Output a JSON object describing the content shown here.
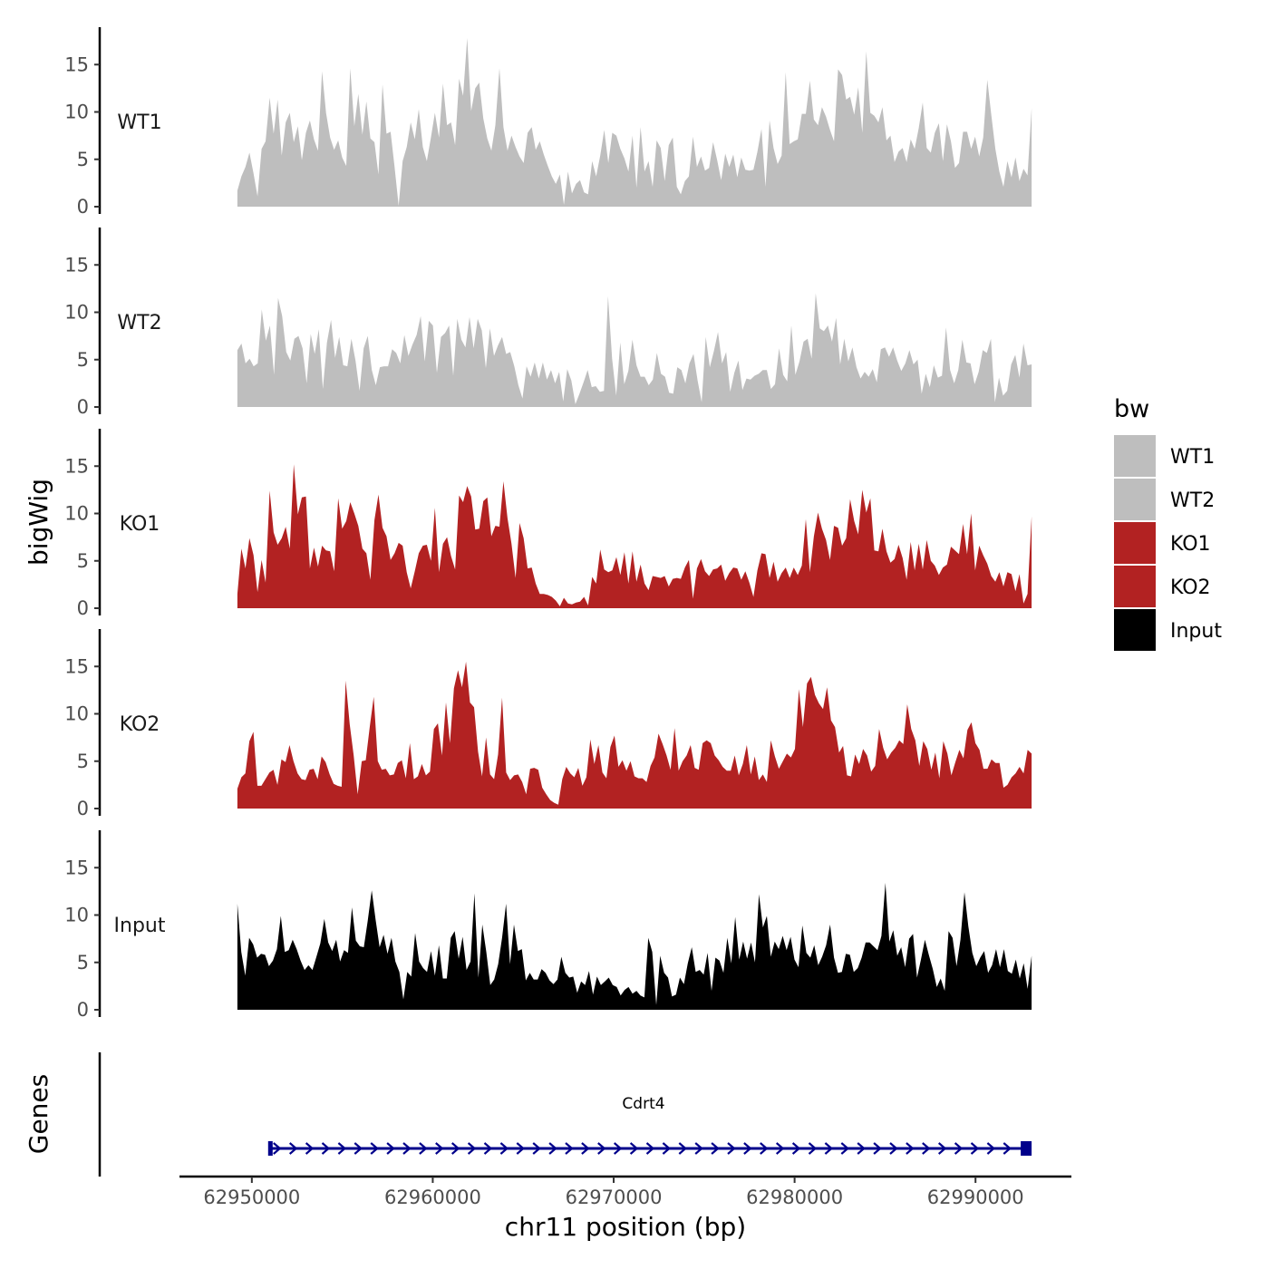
{
  "chart_data": {
    "type": "area",
    "subtype": "genome-browser-tracks",
    "title": "",
    "ylabel": "bigWig",
    "xlabel": "chr11 position (bp)",
    "x_range": [
      62949200,
      62993100
    ],
    "xlim": [
      62946000,
      62995300
    ],
    "ylim": [
      0,
      19
    ],
    "y_ticks": [
      "0",
      "5",
      "10",
      "15"
    ],
    "x_ticks": [
      {
        "value": 62950000,
        "label": "62950000"
      },
      {
        "value": 62960000,
        "label": "62960000"
      },
      {
        "value": 62970000,
        "label": "62970000"
      },
      {
        "value": 62980000,
        "label": "62980000"
      },
      {
        "value": 62990000,
        "label": "62990000"
      }
    ],
    "legend": {
      "title": "bw",
      "position": "right",
      "items": [
        {
          "label": "WT1",
          "color": "#bebebe"
        },
        {
          "label": "WT2",
          "color": "#bebebe"
        },
        {
          "label": "KO1",
          "color": "#b22222"
        },
        {
          "label": "KO2",
          "color": "#b22222"
        },
        {
          "label": "Input",
          "color": "#000000"
        }
      ]
    },
    "series": [
      {
        "name": "WT1",
        "color": "#bebebe",
        "values": [
          1.7,
          3.2,
          4.2,
          5.7,
          3.5,
          1.1,
          6.1,
          6.9,
          11.5,
          7.7,
          11.3,
          5.4,
          8.9,
          9.9,
          6.8,
          8.5,
          4.9,
          7.8,
          9.1,
          7.1,
          5.9,
          14.3,
          9.9,
          7.3,
          6.0,
          7.0,
          5.2,
          4.3,
          14.6,
          8.5,
          11.9,
          7.6,
          11.1,
          7.2,
          6.8,
          3.4,
          12.9,
          7.7,
          7.9,
          4.2,
          0.1,
          4.8,
          6.3,
          8.9,
          7.1,
          10.3,
          6.3,
          4.8,
          7.3,
          9.9,
          7.3,
          13.0,
          8.6,
          8.9,
          6.5,
          13.5,
          11.7,
          17.8,
          10.1,
          12.5,
          13.1,
          9.3,
          7.2,
          5.9,
          8.6,
          14.6,
          8.4,
          5.9,
          7.5,
          6.3,
          5.3,
          4.6,
          7.8,
          8.4,
          6.0,
          6.9,
          5.5,
          4.3,
          3.2,
          2.4,
          3.4,
          0.2,
          3.7,
          1.4,
          2.4,
          2.8,
          1.5,
          1.3,
          4.8,
          3.2,
          5.4,
          8.1,
          4.6,
          7.8,
          7.5,
          6.1,
          5.1,
          3.7,
          7.5,
          2.0,
          8.4,
          3.7,
          4.8,
          2.1,
          7.0,
          6.2,
          2.7,
          6.5,
          7.3,
          2.1,
          1.3,
          2.7,
          3.2,
          7.4,
          4.2,
          5.3,
          3.8,
          4.1,
          6.8,
          4.9,
          2.8,
          5.6,
          4.2,
          5.5,
          3.1,
          5.2,
          3.9,
          3.8,
          3.9,
          5.8,
          8.2,
          2.1,
          9.1,
          6.2,
          4.5,
          5.4,
          14.2,
          6.6,
          6.9,
          7.1,
          9.8,
          9.8,
          13.3,
          9.2,
          8.6,
          10.5,
          9.5,
          8.1,
          6.9,
          14.5,
          13.9,
          11.3,
          11.6,
          9.7,
          12.6,
          7.8,
          16.4,
          9.9,
          9.6,
          8.9,
          10.5,
          7.0,
          7.5,
          4.7,
          5.8,
          6.2,
          4.7,
          7.1,
          6.1,
          8.3,
          11.0,
          6.2,
          5.7,
          7.8,
          8.8,
          4.8,
          8.7,
          6.9,
          4.1,
          4.6,
          7.9,
          7.9,
          6.1,
          7.4,
          5.3,
          7.3,
          13.4,
          9.7,
          6.1,
          3.7,
          2.1,
          4.8,
          3.1,
          5.2,
          2.7,
          4.0,
          3.3,
          10.4
        ]
      },
      {
        "name": "WT2",
        "color": "#bebebe",
        "values": [
          6.0,
          6.7,
          4.6,
          5.1,
          4.3,
          4.6,
          10.3,
          7.0,
          8.6,
          3.4,
          11.5,
          9.6,
          5.8,
          4.9,
          7.2,
          7.5,
          6.2,
          2.5,
          7.7,
          5.6,
          8.2,
          1.9,
          6.8,
          9.2,
          5.2,
          7.4,
          4.4,
          4.3,
          7.2,
          4.9,
          1.7,
          6.2,
          7.5,
          3.9,
          2.3,
          4.2,
          4.3,
          4.3,
          6.1,
          5.7,
          4.6,
          7.6,
          5.4,
          6.6,
          7.6,
          9.6,
          4.8,
          9.1,
          8.6,
          3.6,
          7.4,
          7.8,
          8.6,
          3.3,
          9.3,
          7.1,
          6.3,
          9.5,
          6.2,
          9.3,
          8.1,
          4.1,
          8.3,
          5.4,
          6.5,
          7.4,
          5.6,
          5.8,
          4.3,
          2.3,
          0.9,
          4.3,
          3.2,
          4.7,
          3.0,
          4.7,
          2.9,
          3.9,
          2.5,
          3.7,
          0.6,
          4.0,
          2.8,
          0.3,
          1.4,
          2.6,
          3.9,
          2.1,
          2.2,
          1.6,
          1.7,
          11.7,
          5.1,
          1.2,
          6.8,
          2.4,
          3.8,
          7.1,
          4.4,
          3.2,
          3.2,
          2.3,
          2.9,
          5.7,
          3.5,
          3.2,
          1.5,
          1.4,
          4.2,
          3.9,
          2.5,
          4.6,
          5.6,
          2.8,
          0.5,
          7.4,
          4.2,
          5.9,
          7.9,
          4.6,
          5.8,
          1.6,
          3.6,
          4.9,
          1.8,
          3.0,
          2.9,
          3.3,
          3.5,
          3.9,
          3.9,
          1.9,
          2.4,
          6.2,
          3.4,
          2.7,
          8.6,
          3.4,
          4.8,
          6.9,
          7.2,
          5.1,
          12.0,
          8.3,
          8.0,
          8.6,
          6.9,
          9.4,
          4.5,
          7.2,
          4.8,
          6.3,
          4.2,
          3.0,
          3.7,
          3.2,
          4.0,
          2.6,
          6.1,
          6.3,
          5.3,
          6.3,
          4.9,
          3.8,
          4.6,
          6.0,
          4.5,
          5.0,
          1.4,
          3.5,
          2.1,
          4.4,
          3.1,
          3.3,
          8.4,
          3.9,
          2.5,
          3.9,
          7.1,
          4.7,
          4.6,
          2.4,
          3.7,
          6.0,
          5.7,
          7.2,
          0.5,
          3.1,
          1.2,
          1.7,
          4.5,
          5.5,
          3.1,
          6.7,
          4.4,
          4.5
        ]
      },
      {
        "name": "KO1",
        "color": "#b22222",
        "values": [
          1.5,
          6.3,
          4.2,
          7.4,
          5.6,
          1.7,
          5.1,
          2.7,
          12.4,
          8.0,
          6.7,
          7.4,
          8.6,
          6.3,
          15.2,
          9.9,
          11.7,
          11.8,
          4.2,
          6.4,
          4.4,
          6.6,
          6.1,
          6.0,
          3.9,
          11.6,
          8.4,
          9.2,
          11.2,
          10.0,
          8.7,
          6.3,
          5.8,
          3.0,
          9.3,
          12.0,
          8.5,
          7.6,
          5.1,
          5.8,
          6.9,
          6.6,
          3.8,
          2.1,
          3.9,
          5.8,
          6.6,
          6.7,
          5.0,
          10.6,
          3.8,
          6.8,
          7.5,
          5.5,
          4.1,
          11.9,
          11.2,
          12.9,
          11.8,
          8.3,
          8.4,
          11.3,
          11.7,
          7.6,
          8.7,
          8.6,
          13.4,
          9.5,
          6.8,
          3.2,
          9.0,
          7.4,
          4.2,
          4.3,
          2.6,
          1.5,
          1.5,
          1.4,
          1.2,
          0.8,
          0.2,
          1.1,
          0.5,
          0.4,
          0.6,
          0.7,
          1.2,
          0.3,
          3.3,
          2.6,
          6.2,
          4.1,
          3.8,
          4.0,
          5.4,
          3.5,
          5.9,
          2.6,
          6.0,
          2.8,
          4.6,
          2.6,
          1.9,
          3.4,
          3.3,
          3.2,
          3.4,
          2.3,
          3.1,
          3.2,
          3.1,
          4.3,
          5.1,
          1.0,
          4.2,
          5.2,
          3.9,
          3.4,
          4.1,
          4.2,
          4.6,
          2.9,
          3.7,
          4.3,
          4.2,
          3.0,
          3.9,
          2.7,
          1.2,
          4.0,
          5.8,
          5.7,
          3.2,
          4.9,
          2.8,
          3.7,
          4.3,
          3.2,
          4.3,
          3.5,
          4.5,
          9.4,
          3.8,
          7.6,
          10.1,
          8.4,
          7.2,
          5.1,
          8.7,
          8.5,
          6.6,
          7.4,
          11.5,
          9.2,
          7.8,
          12.5,
          10.1,
          11.6,
          6.1,
          6.0,
          8.4,
          6.0,
          4.8,
          5.2,
          6.7,
          5.3,
          3.0,
          7.0,
          4.0,
          6.8,
          4.1,
          7.2,
          5.0,
          4.5,
          3.5,
          4.3,
          4.6,
          6.5,
          6.1,
          5.7,
          8.9,
          5.7,
          10.0,
          4.0,
          6.6,
          5.6,
          4.7,
          3.4,
          2.8,
          3.8,
          2.3,
          3.8,
          3.6,
          1.8,
          3.6,
          0.5,
          1.5,
          9.7
        ]
      },
      {
        "name": "KO2",
        "color": "#b22222",
        "values": [
          2.1,
          3.3,
          3.7,
          7.1,
          8.1,
          2.4,
          2.4,
          3.1,
          3.8,
          4.1,
          2.5,
          5.2,
          4.9,
          6.7,
          5.0,
          3.7,
          3.1,
          3.0,
          4.1,
          4.2,
          3.1,
          5.5,
          4.9,
          3.6,
          2.6,
          2.4,
          2.3,
          13.5,
          8.9,
          5.6,
          1.5,
          5.0,
          5.1,
          8.6,
          11.8,
          5.0,
          4.1,
          4.2,
          3.5,
          3.6,
          4.8,
          5.1,
          3.2,
          6.9,
          3.1,
          3.4,
          4.7,
          3.5,
          3.9,
          8.4,
          9.0,
          5.6,
          11.2,
          6.9,
          12.7,
          14.6,
          12.8,
          15.5,
          11.2,
          10.7,
          6.0,
          3.4,
          7.5,
          3.6,
          3.1,
          5.7,
          11.7,
          3.8,
          3.0,
          3.5,
          3.6,
          2.8,
          1.5,
          4.2,
          4.3,
          4.1,
          2.2,
          1.5,
          0.9,
          0.6,
          0.4,
          3.1,
          4.4,
          3.7,
          3.3,
          4.3,
          2.4,
          3.3,
          7.3,
          4.7,
          6.7,
          3.8,
          3.2,
          6.5,
          7.7,
          4.4,
          5.1,
          4.0,
          5.0,
          3.4,
          3.2,
          3.2,
          2.8,
          4.5,
          5.4,
          7.9,
          6.8,
          5.6,
          4.1,
          8.5,
          4.0,
          5.0,
          5.6,
          6.7,
          4.3,
          4.1,
          6.9,
          7.2,
          6.9,
          5.6,
          5.1,
          4.4,
          4.0,
          4.0,
          5.6,
          3.5,
          4.7,
          6.7,
          3.6,
          5.5,
          3.0,
          3.6,
          2.8,
          7.2,
          5.5,
          4.2,
          5.0,
          5.8,
          5.4,
          6.3,
          12.6,
          8.6,
          13.2,
          13.9,
          12.0,
          11.1,
          10.5,
          12.8,
          9.3,
          8.6,
          5.9,
          6.6,
          3.5,
          3.4,
          5.7,
          4.7,
          6.3,
          5.6,
          3.9,
          4.5,
          8.4,
          6.4,
          5.2,
          5.9,
          6.4,
          7.2,
          6.8,
          11.0,
          8.4,
          7.2,
          4.5,
          7.1,
          6.3,
          4.1,
          5.9,
          3.2,
          7.1,
          5.8,
          3.5,
          4.9,
          6.2,
          5.3,
          8.3,
          9.1,
          6.9,
          6.2,
          4.2,
          4.2,
          5.2,
          4.8,
          4.8,
          2.2,
          2.5,
          3.3,
          3.7,
          4.4,
          3.7,
          6.2,
          5.8
        ]
      },
      {
        "name": "Input",
        "color": "#000000",
        "values": [
          11.2,
          6.1,
          3.6,
          7.6,
          6.9,
          5.5,
          5.9,
          5.8,
          4.6,
          5.2,
          6.4,
          9.9,
          6.1,
          6.3,
          7.4,
          6.4,
          5.2,
          4.2,
          4.7,
          4.2,
          5.6,
          7.0,
          9.6,
          7.1,
          6.2,
          7.4,
          5.1,
          6.3,
          6.0,
          10.8,
          7.3,
          6.7,
          6.6,
          9.4,
          12.6,
          9.5,
          6.6,
          7.9,
          5.9,
          7.6,
          5.1,
          4.0,
          1.1,
          4.0,
          3.5,
          8.1,
          5.1,
          4.4,
          4.0,
          6.2,
          3.6,
          6.8,
          3.3,
          3.3,
          7.6,
          8.3,
          5.4,
          7.7,
          4.2,
          5.1,
          12.3,
          3.4,
          9.0,
          6.1,
          2.6,
          3.2,
          4.8,
          7.6,
          11.2,
          4.8,
          9.0,
          6.2,
          6.4,
          3.1,
          3.9,
          3.2,
          3.2,
          4.3,
          3.9,
          3.1,
          2.7,
          3.2,
          5.6,
          3.9,
          3.4,
          3.5,
          1.8,
          3.0,
          2.6,
          4.1,
          1.6,
          3.5,
          2.6,
          3.0,
          3.4,
          2.6,
          2.4,
          1.5,
          2.1,
          2.4,
          1.7,
          2.0,
          1.5,
          1.3,
          7.6,
          6.1,
          0.5,
          5.7,
          3.9,
          3.4,
          1.4,
          1.6,
          3.4,
          2.7,
          4.9,
          6.6,
          4.0,
          4.2,
          3.7,
          6.0,
          2.0,
          5.5,
          5.2,
          3.9,
          7.6,
          4.9,
          9.8,
          5.3,
          7.2,
          5.4,
          7.1,
          5.0,
          12.2,
          8.7,
          9.9,
          5.6,
          7.2,
          6.4,
          7.8,
          6.3,
          7.7,
          5.3,
          4.5,
          8.9,
          6.0,
          5.5,
          6.8,
          4.7,
          5.6,
          6.8,
          9.0,
          5.5,
          3.9,
          4.0,
          5.9,
          5.8,
          4.0,
          4.4,
          5.5,
          7.1,
          7.1,
          6.7,
          6.3,
          7.8,
          13.4,
          7.2,
          8.4,
          5.7,
          6.6,
          4.5,
          7.5,
          8.0,
          3.4,
          5.3,
          7.4,
          5.8,
          4.3,
          2.4,
          3.3,
          2.0,
          8.3,
          7.6,
          4.6,
          7.4,
          12.4,
          8.8,
          6.0,
          4.6,
          5.5,
          6.2,
          3.9,
          4.7,
          6.4,
          4.5,
          6.4,
          4.1,
          3.8,
          5.3,
          3.3,
          4.9,
          2.2,
          5.7
        ]
      }
    ]
  },
  "genes_track": {
    "label": "Genes",
    "gene_name": "Cdrt4",
    "start": 62951000,
    "end": 62993000,
    "strand": "+",
    "color": "#00008b"
  }
}
